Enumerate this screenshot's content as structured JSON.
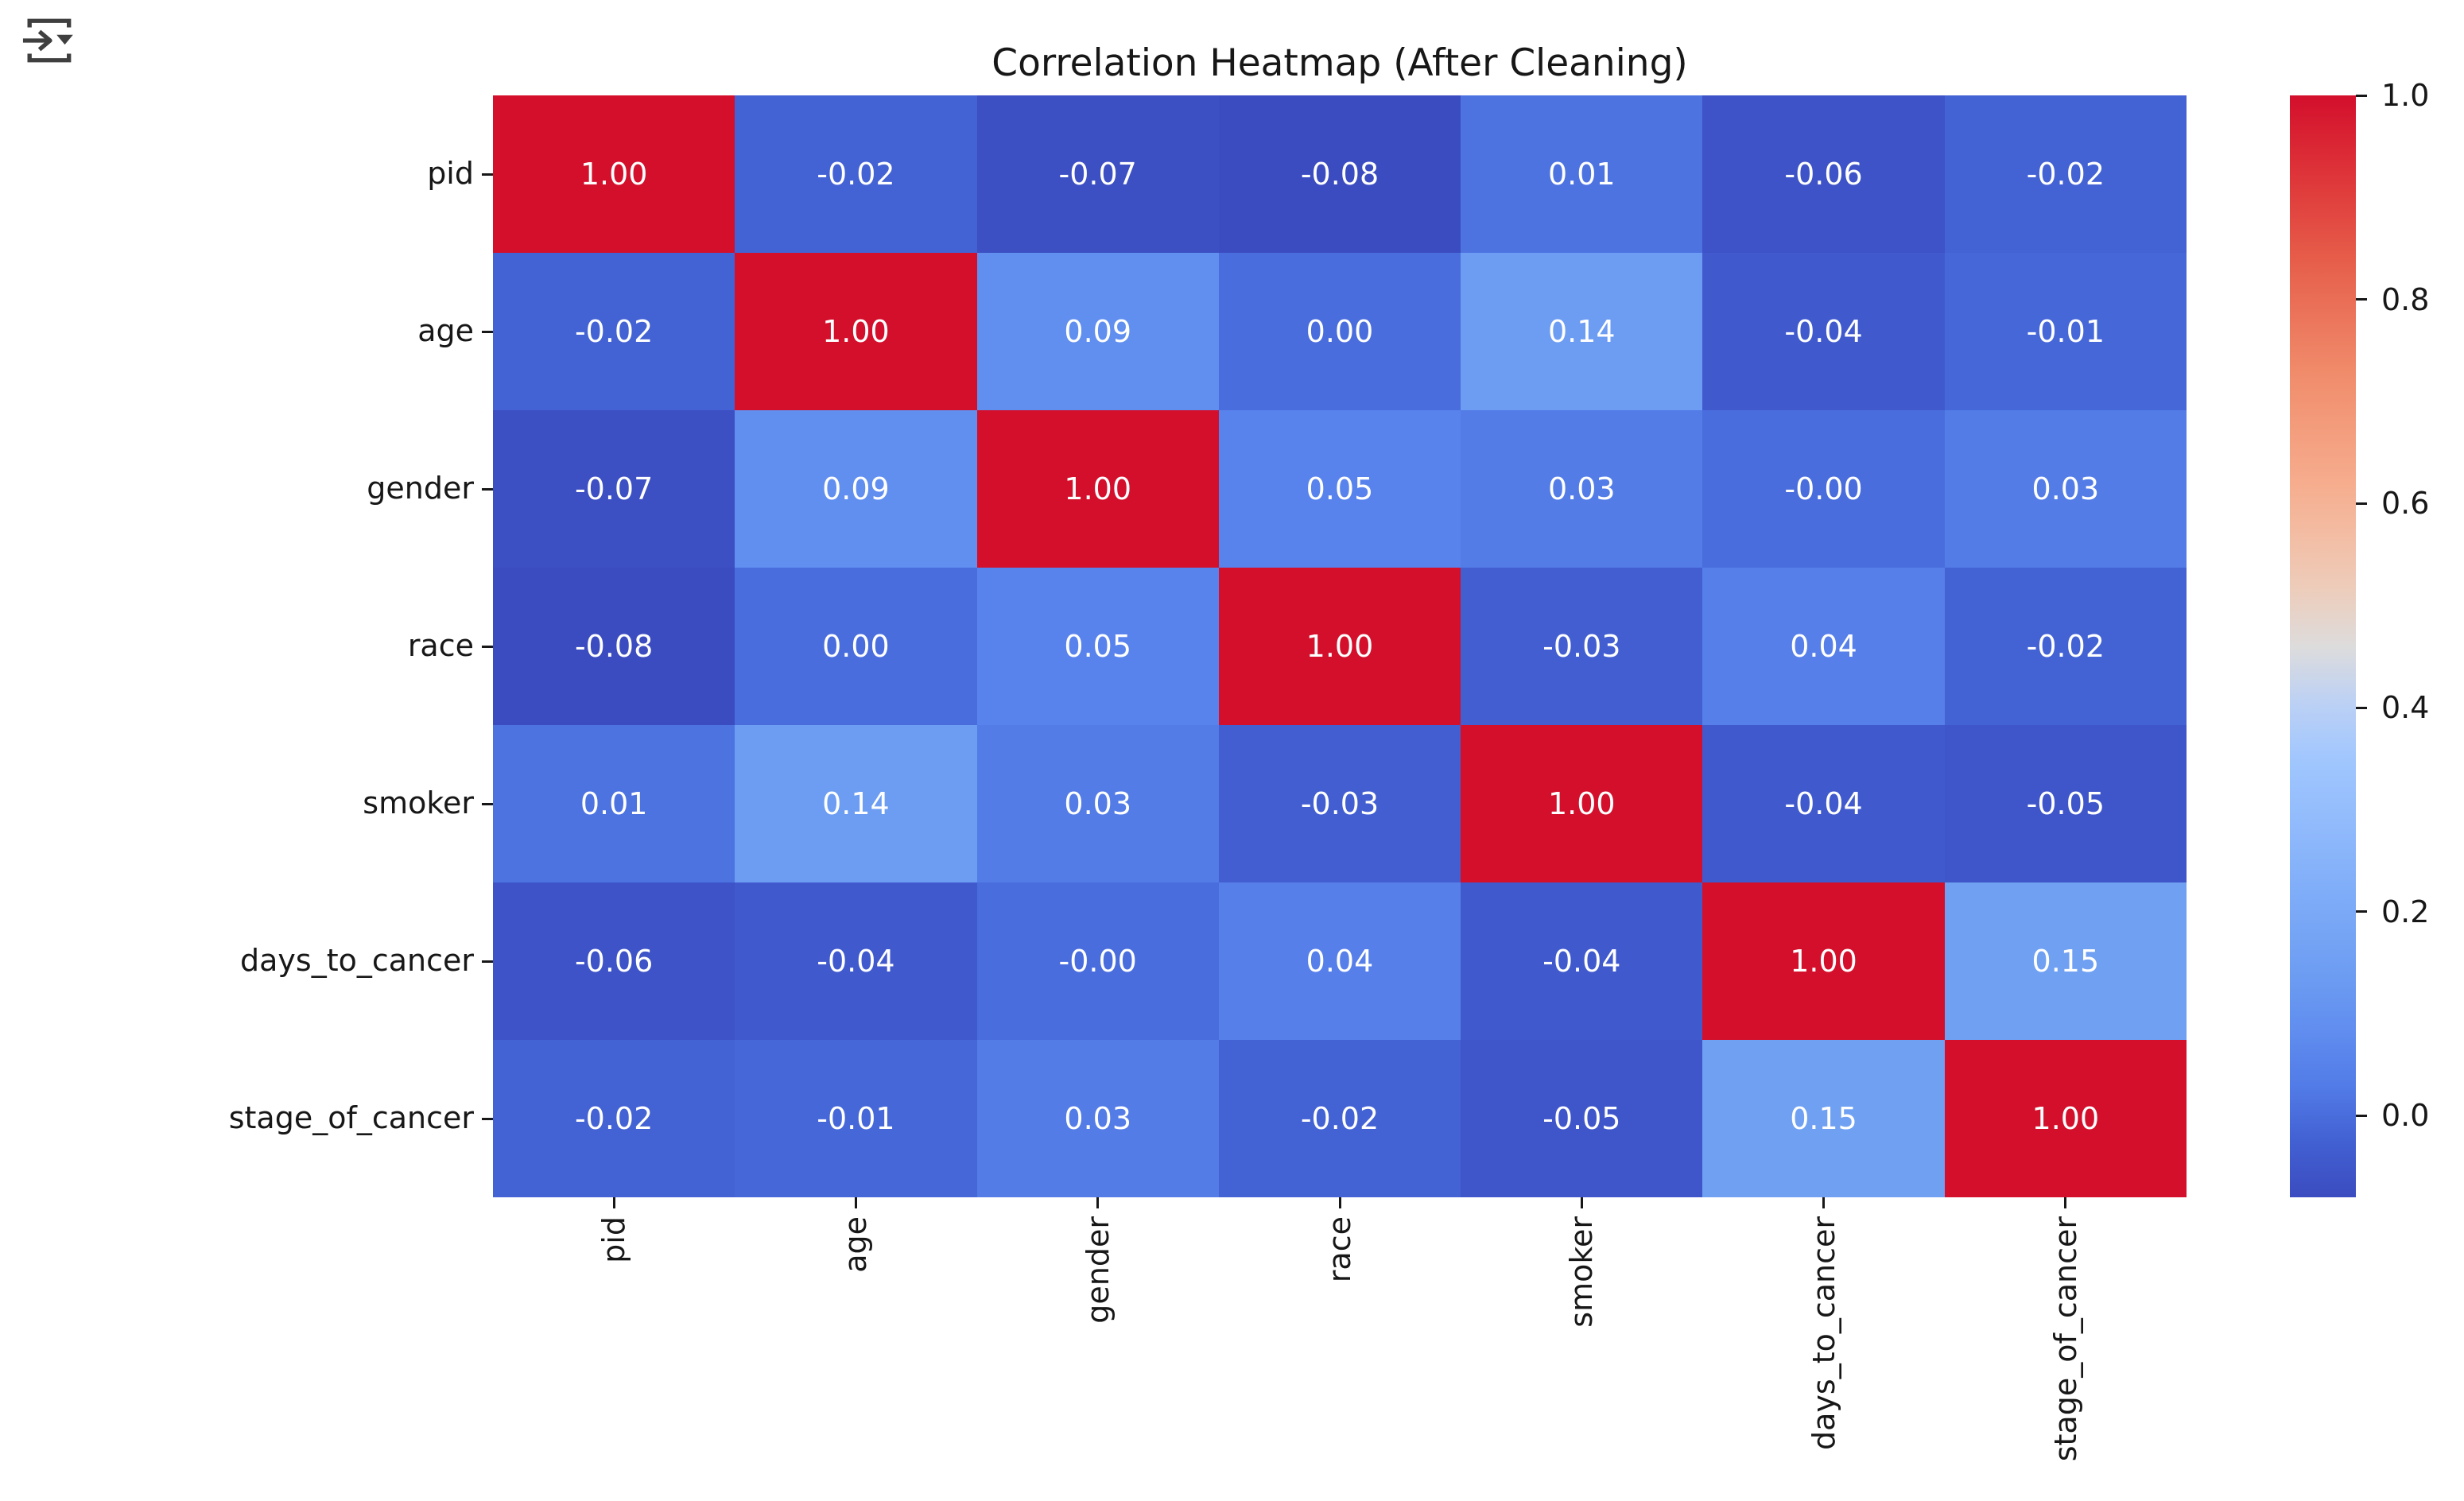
{
  "icons": {
    "top_left": "notebook-output-options-icon"
  },
  "chart_data": {
    "type": "heatmap",
    "title": "Correlation Heatmap (After Cleaning)",
    "categories": [
      "pid",
      "age",
      "gender",
      "race",
      "smoker",
      "days_to_cancer",
      "stage_of_cancer"
    ],
    "matrix": [
      [
        1.0,
        -0.02,
        -0.07,
        -0.08,
        0.01,
        -0.06,
        -0.02
      ],
      [
        -0.02,
        1.0,
        0.09,
        0.0,
        0.14,
        -0.04,
        -0.01
      ],
      [
        -0.07,
        0.09,
        1.0,
        0.05,
        0.03,
        -0.0,
        0.03
      ],
      [
        -0.08,
        0.0,
        0.05,
        1.0,
        -0.03,
        0.04,
        -0.02
      ],
      [
        0.01,
        0.14,
        0.03,
        -0.03,
        1.0,
        -0.04,
        -0.05
      ],
      [
        -0.06,
        -0.04,
        -0.0,
        0.04,
        -0.04,
        1.0,
        0.15
      ],
      [
        -0.02,
        -0.01,
        0.03,
        -0.02,
        -0.05,
        0.15,
        1.0
      ]
    ],
    "annotations": [
      [
        "1.00",
        "-0.02",
        "-0.07",
        "-0.08",
        "0.01",
        "-0.06",
        "-0.02"
      ],
      [
        "-0.02",
        "1.00",
        "0.09",
        "0.00",
        "0.14",
        "-0.04",
        "-0.01"
      ],
      [
        "-0.07",
        "0.09",
        "1.00",
        "0.05",
        "0.03",
        "-0.00",
        "0.03"
      ],
      [
        "-0.08",
        "0.00",
        "0.05",
        "1.00",
        "-0.03",
        "0.04",
        "-0.02"
      ],
      [
        "0.01",
        "0.14",
        "0.03",
        "-0.03",
        "1.00",
        "-0.04",
        "-0.05"
      ],
      [
        "-0.06",
        "-0.04",
        "-0.00",
        "0.04",
        "-0.04",
        "1.00",
        "0.15"
      ],
      [
        "-0.02",
        "-0.01",
        "0.03",
        "-0.02",
        "-0.05",
        "0.15",
        "1.00"
      ]
    ],
    "annotation_text_color": "#ffffff",
    "grid": false,
    "colormap": {
      "name": "coolwarm",
      "vmin": -0.08,
      "vmax": 1.0,
      "anchors": [
        {
          "t": 0.0,
          "color": "#3b4cc0"
        },
        {
          "t": 0.03,
          "color": "#3f57cb"
        },
        {
          "t": 0.06,
          "color": "#4464d6"
        },
        {
          "t": 0.09,
          "color": "#4f77e4"
        },
        {
          "t": 0.13,
          "color": "#5c87ee"
        },
        {
          "t": 0.17,
          "color": "#6492f0"
        },
        {
          "t": 0.21,
          "color": "#6e9ff2"
        },
        {
          "t": 0.3,
          "color": "#86b2fa"
        },
        {
          "t": 0.4,
          "color": "#a2c7fe"
        },
        {
          "t": 0.47,
          "color": "#c8d5f0"
        },
        {
          "t": 0.5,
          "color": "#dddcdc"
        },
        {
          "t": 0.56,
          "color": "#f0cab6"
        },
        {
          "t": 0.65,
          "color": "#f6ac8d"
        },
        {
          "t": 0.75,
          "color": "#f08b6a"
        },
        {
          "t": 0.85,
          "color": "#e65e4a"
        },
        {
          "t": 0.95,
          "color": "#db2935"
        },
        {
          "t": 1.0,
          "color": "#d30f2c"
        }
      ]
    },
    "colorbar": {
      "position": "right",
      "tick_labels": [
        "1.0",
        "0.8",
        "0.6",
        "0.4",
        "0.2",
        "0.0"
      ],
      "tick_values": [
        1.0,
        0.8,
        0.6,
        0.4,
        0.2,
        0.0
      ]
    }
  }
}
